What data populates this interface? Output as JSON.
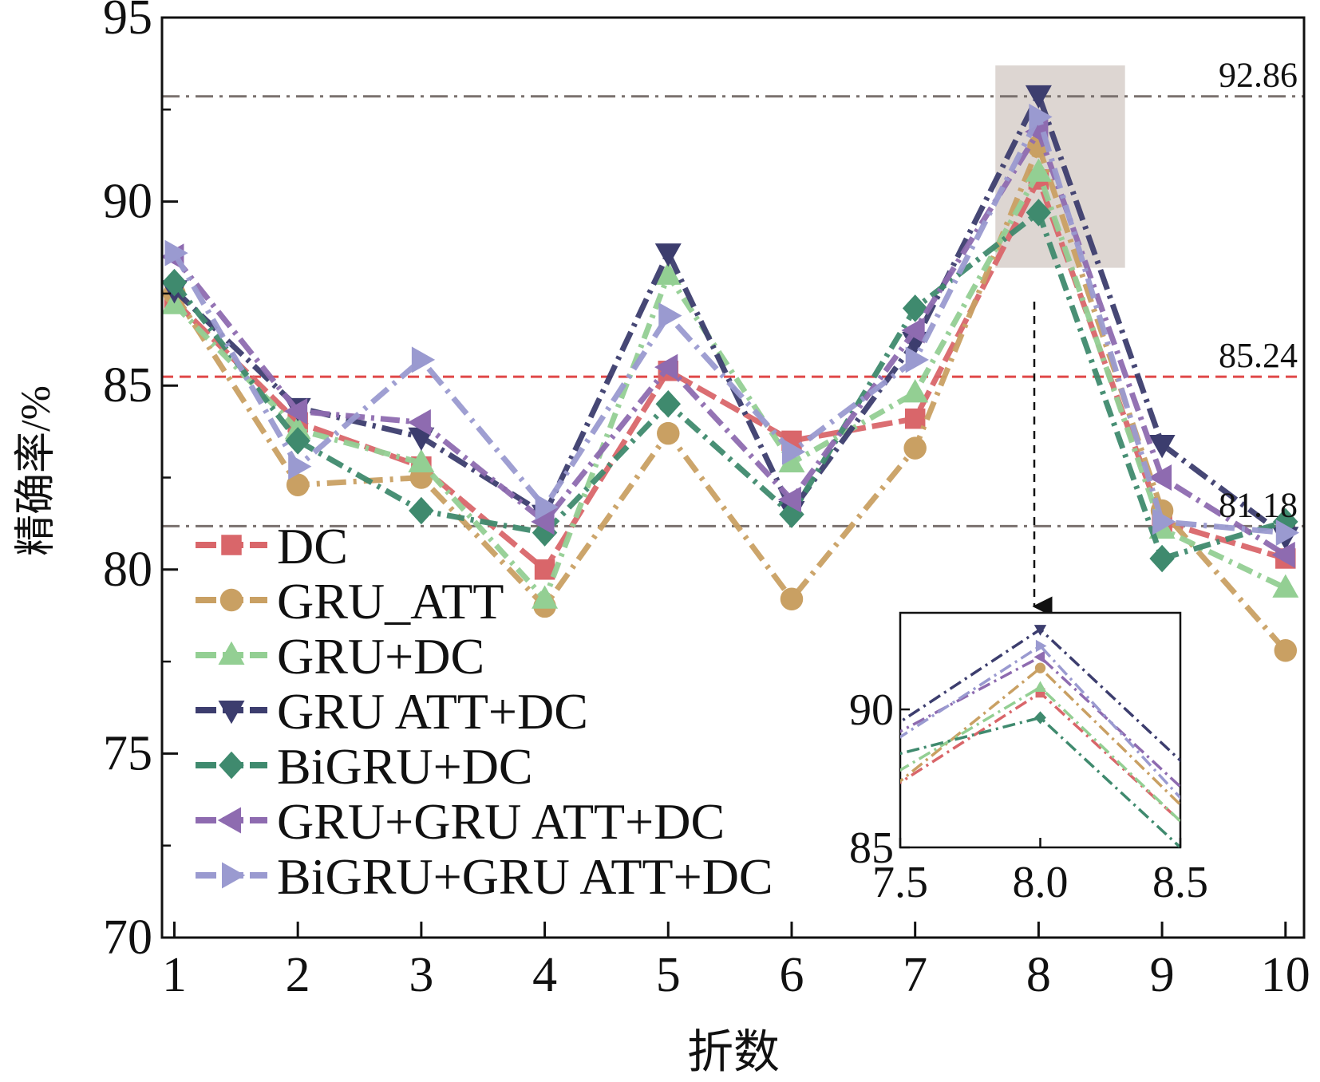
{
  "chart_data": {
    "type": "line",
    "xlabel": "折数",
    "ylabel": "精确率/%",
    "xlim": [
      0.9,
      10.15
    ],
    "ylim": [
      70,
      95
    ],
    "xticks": [
      1,
      2,
      3,
      4,
      5,
      6,
      7,
      8,
      9,
      10
    ],
    "yticks": [
      70,
      75,
      80,
      85,
      90,
      95
    ],
    "legend_position": "lower-left",
    "reference_lines": [
      {
        "value": 92.86,
        "label": "92.86",
        "color": "#7a716e",
        "style": "dash-dot"
      },
      {
        "value": 85.24,
        "label": "85.24",
        "color": "#e04848",
        "style": "dashed"
      },
      {
        "value": 81.18,
        "label": "81.18",
        "color": "#7a716e",
        "style": "dash-dot"
      }
    ],
    "highlight_region": {
      "x": [
        7.65,
        8.7
      ],
      "y": [
        88.2,
        93.7
      ],
      "color": "#ddd6d2"
    },
    "series": [
      {
        "name": "DC",
        "marker": "square",
        "color": "#d9666a",
        "x": [
          1,
          2,
          3,
          4,
          5,
          6,
          7,
          8,
          9,
          10
        ],
        "values": [
          87.3,
          84.0,
          82.8,
          80.0,
          85.4,
          83.5,
          84.1,
          90.6,
          81.3,
          80.3
        ]
      },
      {
        "name": "GRU_ATT",
        "marker": "circle",
        "color": "#c9a063",
        "x": [
          1,
          2,
          3,
          4,
          5,
          6,
          7,
          8,
          9,
          10
        ],
        "values": [
          87.5,
          82.3,
          82.5,
          79.0,
          83.7,
          79.2,
          83.3,
          91.5,
          81.6,
          77.8
        ]
      },
      {
        "name": "GRU+DC",
        "marker": "triangle-up",
        "color": "#93cf93",
        "x": [
          1,
          2,
          3,
          4,
          5,
          6,
          7,
          8,
          9,
          10
        ],
        "values": [
          87.2,
          83.8,
          82.9,
          79.2,
          88.0,
          82.9,
          84.8,
          90.8,
          81.1,
          79.5
        ]
      },
      {
        "name": "GRU ATT+DC",
        "marker": "triangle-down",
        "color": "#3c3d6e",
        "x": [
          1,
          2,
          3,
          4,
          5,
          6,
          7,
          8,
          9,
          10
        ],
        "values": [
          87.6,
          84.4,
          83.6,
          81.5,
          88.6,
          81.6,
          86.2,
          92.9,
          83.4,
          80.9
        ]
      },
      {
        "name": "BiGRU+DC",
        "marker": "diamond",
        "color": "#3f8a6e",
        "x": [
          1,
          2,
          3,
          4,
          5,
          6,
          7,
          8,
          9,
          10
        ],
        "values": [
          87.8,
          83.5,
          81.6,
          81.0,
          84.5,
          81.5,
          87.1,
          89.7,
          80.3,
          81.3
        ]
      },
      {
        "name": "GRU+GRU ATT+DC",
        "marker": "triangle-left",
        "color": "#8e6bb0",
        "x": [
          1,
          2,
          3,
          4,
          5,
          6,
          7,
          8,
          9,
          10
        ],
        "values": [
          88.5,
          84.3,
          84.0,
          81.3,
          85.5,
          81.9,
          86.5,
          91.9,
          82.5,
          80.4
        ]
      },
      {
        "name": "BiGRU+GRU ATT+DC",
        "marker": "triangle-right",
        "color": "#9a9ad0",
        "x": [
          1,
          2,
          3,
          4,
          5,
          6,
          7,
          8,
          9,
          10
        ],
        "values": [
          88.6,
          82.8,
          85.7,
          81.7,
          86.9,
          83.2,
          85.7,
          92.3,
          81.3,
          81.0
        ]
      }
    ],
    "inset": {
      "xlim": [
        7.5,
        8.5
      ],
      "ylim": [
        85,
        93.5
      ],
      "xticks": [
        7.5,
        8.0,
        8.5
      ],
      "yticks": [
        85,
        90
      ],
      "xtick_labels": [
        "7.5",
        "8.0",
        "8.5"
      ],
      "ytick_labels": [
        "85",
        "90"
      ]
    }
  }
}
